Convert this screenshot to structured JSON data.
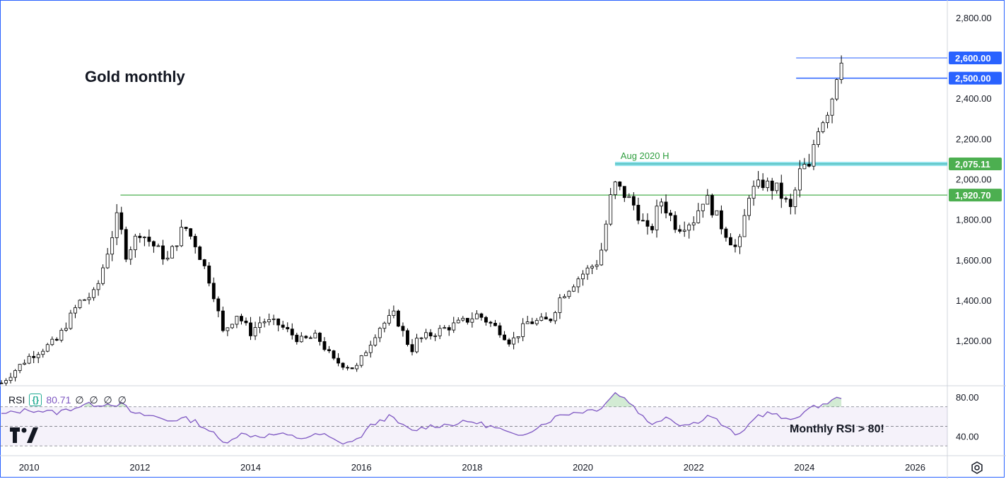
{
  "title": "Gold monthly",
  "annotation": "Aug 2020 H",
  "rsi_note": "Monthly RSI > 80!",
  "rsi_legend": {
    "name": "RSI",
    "value": "80.71",
    "extras": "∅ ∅ ∅ ∅"
  },
  "icons": {
    "logo": "tradingview-logo-icon",
    "brace": "source-code-icon",
    "settings": "settings-gear-icon"
  },
  "colors": {
    "bull": "#ffffff",
    "bear": "#000000",
    "rsi": "#7e57c2",
    "green": "#4caf50",
    "cyan": "#4dd0e1",
    "blue": "#2962ff"
  },
  "chart_data": {
    "type": "candlestick",
    "xlim": [
      2009.5,
      2026.58
    ],
    "ylim": [
      980,
      2880
    ],
    "price_ticks": [
      "2,800.00",
      "2,600.00",
      "2,400.00",
      "2,200.00",
      "2,000.00",
      "1,800.00",
      "1,600.00",
      "1,400.00",
      "1,200.00"
    ],
    "price_tick_values": [
      2800,
      2600,
      2400,
      2200,
      2000,
      1800,
      1600,
      1400,
      1200
    ],
    "x_ticks": [
      "2010",
      "2012",
      "2014",
      "2016",
      "2018",
      "2020",
      "2022",
      "2024",
      "2026"
    ],
    "levels": [
      {
        "label": "2,600.00",
        "value": 2600,
        "color": "#2962ff"
      },
      {
        "label": "2,500.00",
        "value": 2500,
        "color": "#2962ff"
      },
      {
        "label": "2,075.11",
        "value": 2075.11,
        "color": "#4caf50"
      },
      {
        "label": "1,920.70",
        "value": 1920.7,
        "color": "#4caf50"
      }
    ],
    "close_anchors": [
      [
        2009.5,
        990
      ],
      [
        2010.0,
        1120
      ],
      [
        2010.5,
        1200
      ],
      [
        2010.9,
        1390
      ],
      [
        2011.2,
        1435
      ],
      [
        2011.6,
        1820
      ],
      [
        2011.75,
        1630
      ],
      [
        2012.0,
        1740
      ],
      [
        2012.5,
        1600
      ],
      [
        2012.8,
        1770
      ],
      [
        2013.0,
        1680
      ],
      [
        2013.3,
        1470
      ],
      [
        2013.5,
        1240
      ],
      [
        2013.75,
        1330
      ],
      [
        2014.0,
        1240
      ],
      [
        2014.2,
        1300
      ],
      [
        2014.5,
        1280
      ],
      [
        2014.9,
        1200
      ],
      [
        2015.2,
        1220
      ],
      [
        2015.5,
        1100
      ],
      [
        2015.9,
        1060
      ],
      [
        2016.0,
        1110
      ],
      [
        2016.3,
        1260
      ],
      [
        2016.6,
        1330
      ],
      [
        2016.9,
        1150
      ],
      [
        2017.0,
        1200
      ],
      [
        2017.5,
        1260
      ],
      [
        2017.9,
        1300
      ],
      [
        2018.1,
        1330
      ],
      [
        2018.5,
        1250
      ],
      [
        2018.7,
        1190
      ],
      [
        2019.0,
        1290
      ],
      [
        2019.4,
        1300
      ],
      [
        2019.6,
        1420
      ],
      [
        2019.95,
        1520
      ],
      [
        2020.3,
        1600
      ],
      [
        2020.55,
        1980
      ],
      [
        2020.9,
        1880
      ],
      [
        2021.2,
        1720
      ],
      [
        2021.4,
        1900
      ],
      [
        2021.7,
        1760
      ],
      [
        2022.0,
        1800
      ],
      [
        2022.2,
        1920
      ],
      [
        2022.5,
        1770
      ],
      [
        2022.8,
        1640
      ],
      [
        2023.0,
        1930
      ],
      [
        2023.25,
        1980
      ],
      [
        2023.5,
        1950
      ],
      [
        2023.75,
        1850
      ],
      [
        2023.95,
        2070
      ],
      [
        2024.1,
        2040
      ],
      [
        2024.2,
        2240
      ],
      [
        2024.4,
        2330
      ],
      [
        2024.55,
        2450
      ],
      [
        2024.62,
        2600
      ],
      [
        2024.7,
        2620
      ]
    ],
    "rsi": {
      "ylim": [
        20,
        90
      ],
      "tick_labels": [
        "80.00",
        "40.00"
      ],
      "tick_values": [
        80,
        40
      ],
      "band": [
        30,
        70
      ],
      "mid": 50,
      "last": 80.71,
      "anchors": [
        [
          2009.5,
          62
        ],
        [
          2010.0,
          67
        ],
        [
          2010.5,
          64
        ],
        [
          2011.0,
          72
        ],
        [
          2011.5,
          73
        ],
        [
          2011.7,
          72
        ],
        [
          2011.9,
          62
        ],
        [
          2012.2,
          61
        ],
        [
          2012.5,
          56
        ],
        [
          2012.8,
          58
        ],
        [
          2013.0,
          55
        ],
        [
          2013.3,
          44
        ],
        [
          2013.5,
          33
        ],
        [
          2013.8,
          42
        ],
        [
          2014.2,
          40
        ],
        [
          2014.5,
          42
        ],
        [
          2014.9,
          38
        ],
        [
          2015.3,
          42
        ],
        [
          2015.6,
          33
        ],
        [
          2015.9,
          35
        ],
        [
          2016.2,
          52
        ],
        [
          2016.5,
          60
        ],
        [
          2016.9,
          45
        ],
        [
          2017.2,
          50
        ],
        [
          2017.6,
          52
        ],
        [
          2018.0,
          55
        ],
        [
          2018.5,
          47
        ],
        [
          2018.8,
          39
        ],
        [
          2019.2,
          50
        ],
        [
          2019.6,
          62
        ],
        [
          2019.95,
          65
        ],
        [
          2020.3,
          68
        ],
        [
          2020.6,
          85
        ],
        [
          2020.9,
          72
        ],
        [
          2021.2,
          52
        ],
        [
          2021.5,
          60
        ],
        [
          2021.8,
          51
        ],
        [
          2022.0,
          53
        ],
        [
          2022.3,
          62
        ],
        [
          2022.6,
          47
        ],
        [
          2022.85,
          40
        ],
        [
          2023.1,
          60
        ],
        [
          2023.4,
          64
        ],
        [
          2023.7,
          55
        ],
        [
          2024.0,
          65
        ],
        [
          2024.25,
          71
        ],
        [
          2024.5,
          76
        ],
        [
          2024.7,
          81
        ]
      ]
    }
  }
}
